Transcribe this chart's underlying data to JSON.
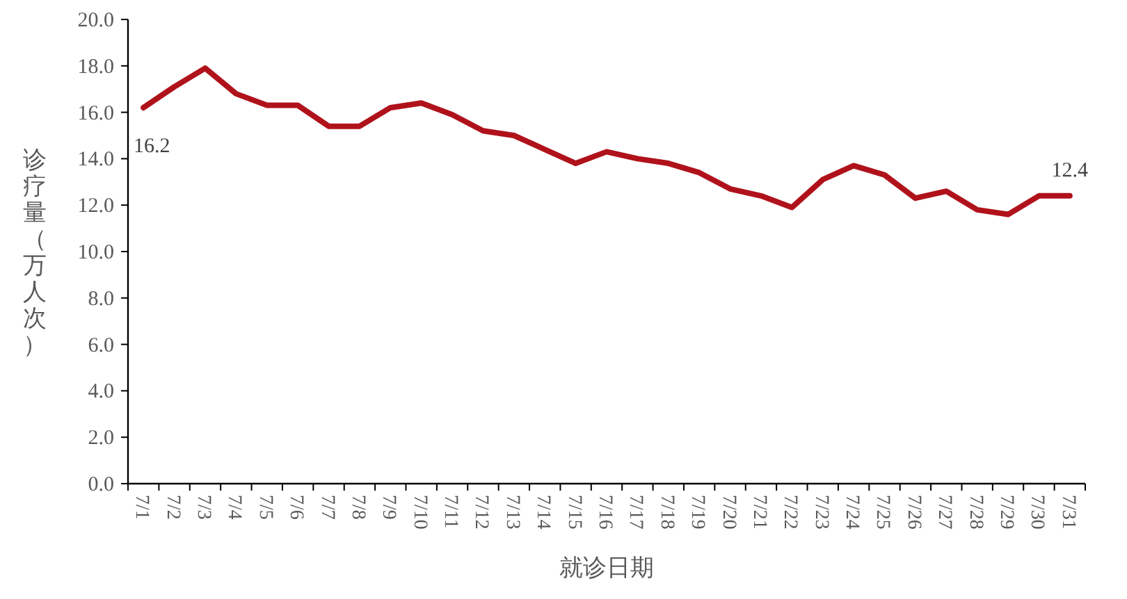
{
  "chart_data": {
    "type": "line",
    "xlabel": "就诊日期",
    "ylabel": "诊疗量（万人次）",
    "categories": [
      "7/1",
      "7/2",
      "7/3",
      "7/4",
      "7/5",
      "7/6",
      "7/7",
      "7/8",
      "7/9",
      "7/10",
      "7/11",
      "7/12",
      "7/13",
      "7/14",
      "7/15",
      "7/16",
      "7/17",
      "7/18",
      "7/19",
      "7/20",
      "7/21",
      "7/22",
      "7/23",
      "7/24",
      "7/25",
      "7/26",
      "7/27",
      "7/28",
      "7/29",
      "7/30",
      "7/31"
    ],
    "series": [
      {
        "color": "#b0121b",
        "values": [
          16.2,
          17.1,
          17.9,
          16.8,
          16.3,
          16.3,
          15.4,
          15.4,
          16.2,
          16.4,
          15.9,
          15.2,
          15.0,
          14.4,
          13.8,
          14.3,
          14.0,
          13.8,
          13.4,
          12.7,
          12.4,
          11.9,
          13.1,
          13.7,
          13.3,
          12.3,
          12.6,
          11.8,
          11.6,
          12.4,
          12.4
        ],
        "value_labels": [
          "16.2",
          null,
          null,
          null,
          null,
          null,
          null,
          null,
          null,
          null,
          null,
          null,
          null,
          null,
          null,
          null,
          null,
          null,
          null,
          null,
          null,
          null,
          null,
          null,
          null,
          null,
          null,
          null,
          null,
          null,
          "12.4"
        ]
      }
    ],
    "ylim": [
      0,
      20
    ],
    "yticks": [
      {
        "value": 0,
        "label": "0.0"
      },
      {
        "value": 2,
        "label": "2.0"
      },
      {
        "value": 4,
        "label": "4.0"
      },
      {
        "value": 6,
        "label": "6.0"
      },
      {
        "value": 8,
        "label": "8.0"
      },
      {
        "value": 10,
        "label": "10.0"
      },
      {
        "value": 12,
        "label": "12.0"
      },
      {
        "value": 14,
        "label": "14.0"
      },
      {
        "value": 16,
        "label": "16.0"
      },
      {
        "value": 18,
        "label": "18.0"
      },
      {
        "value": 20,
        "label": "20.0"
      }
    ],
    "grid": false,
    "marker": "none",
    "line_style": "solid"
  }
}
